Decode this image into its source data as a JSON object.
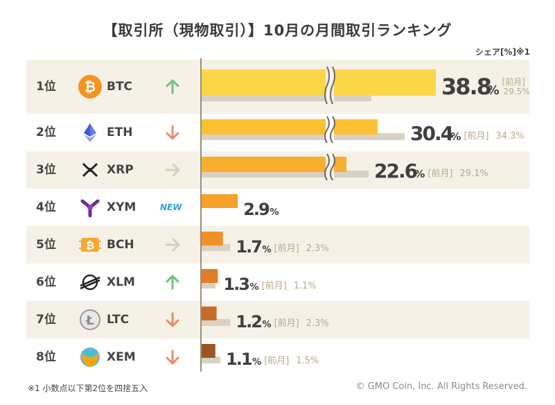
{
  "title": "【取引所（現物取引）】10月の月間取引ランキング",
  "unit_label": "シェア[%]※1",
  "prev_label": "[前月]",
  "footnote": "※1 小数点以下第2位を四捨五入",
  "copyright": "© GMO Coin, Inc. All Rights Reserved.",
  "colors": {
    "row_alt": "#f5f1e6",
    "prev_bar": "#d9d1c4",
    "up": "#6cc27a",
    "down": "#ec8a6a",
    "flat": "#d9cdb8",
    "new": "#2aa1d4"
  },
  "chart_data": {
    "type": "bar",
    "orientation": "horizontal",
    "axis_break": true,
    "categories": [
      "BTC",
      "ETH",
      "XRP",
      "XYM",
      "BCH",
      "XLM",
      "LTC",
      "XEM"
    ],
    "series": [
      {
        "name": "",
        "values": [
          38.8,
          30.4,
          22.6,
          2.9,
          1.7,
          1.3,
          1.2,
          1.1
        ]
      },
      {
        "name": "[前月]",
        "values": [
          29.5,
          34.3,
          29.1,
          null,
          2.3,
          1.1,
          2.3,
          1.5
        ]
      }
    ]
  },
  "rows": [
    {
      "rank": "1位",
      "symbol": "BTC",
      "trend": "up",
      "icon": "bitcoin-icon",
      "value": "38.8",
      "pct": "%",
      "prev": "29.5%",
      "bar_color": "#fbd648"
    },
    {
      "rank": "2位",
      "symbol": "ETH",
      "trend": "down",
      "icon": "ethereum-icon",
      "value": "30.4",
      "pct": "%",
      "prev": "34.3%",
      "bar_color": "#fcc132"
    },
    {
      "rank": "3位",
      "symbol": "XRP",
      "trend": "flat",
      "icon": "xrp-icon",
      "value": "22.6",
      "pct": "%",
      "prev": "29.1%",
      "bar_color": "#faae2e"
    },
    {
      "rank": "4位",
      "symbol": "XYM",
      "trend": "new",
      "trend_text": "NEW",
      "icon": "symbol-icon",
      "value": "2.9",
      "pct": "%",
      "prev": "",
      "bar_color": "#f7a02a"
    },
    {
      "rank": "5位",
      "symbol": "BCH",
      "trend": "flat",
      "icon": "bitcoin-cash-icon",
      "value": "1.7",
      "pct": "%",
      "prev": "2.3%",
      "bar_color": "#f29028"
    },
    {
      "rank": "6位",
      "symbol": "XLM",
      "trend": "up",
      "icon": "stellar-icon",
      "value": "1.3",
      "pct": "%",
      "prev": "1.1%",
      "bar_color": "#e07e27"
    },
    {
      "rank": "7位",
      "symbol": "LTC",
      "trend": "down",
      "icon": "litecoin-icon",
      "value": "1.2",
      "pct": "%",
      "prev": "2.3%",
      "bar_color": "#c96b28"
    },
    {
      "rank": "8位",
      "symbol": "XEM",
      "trend": "down",
      "icon": "nem-icon",
      "value": "1.1",
      "pct": "%",
      "prev": "1.5%",
      "bar_color": "#9a5522"
    }
  ]
}
